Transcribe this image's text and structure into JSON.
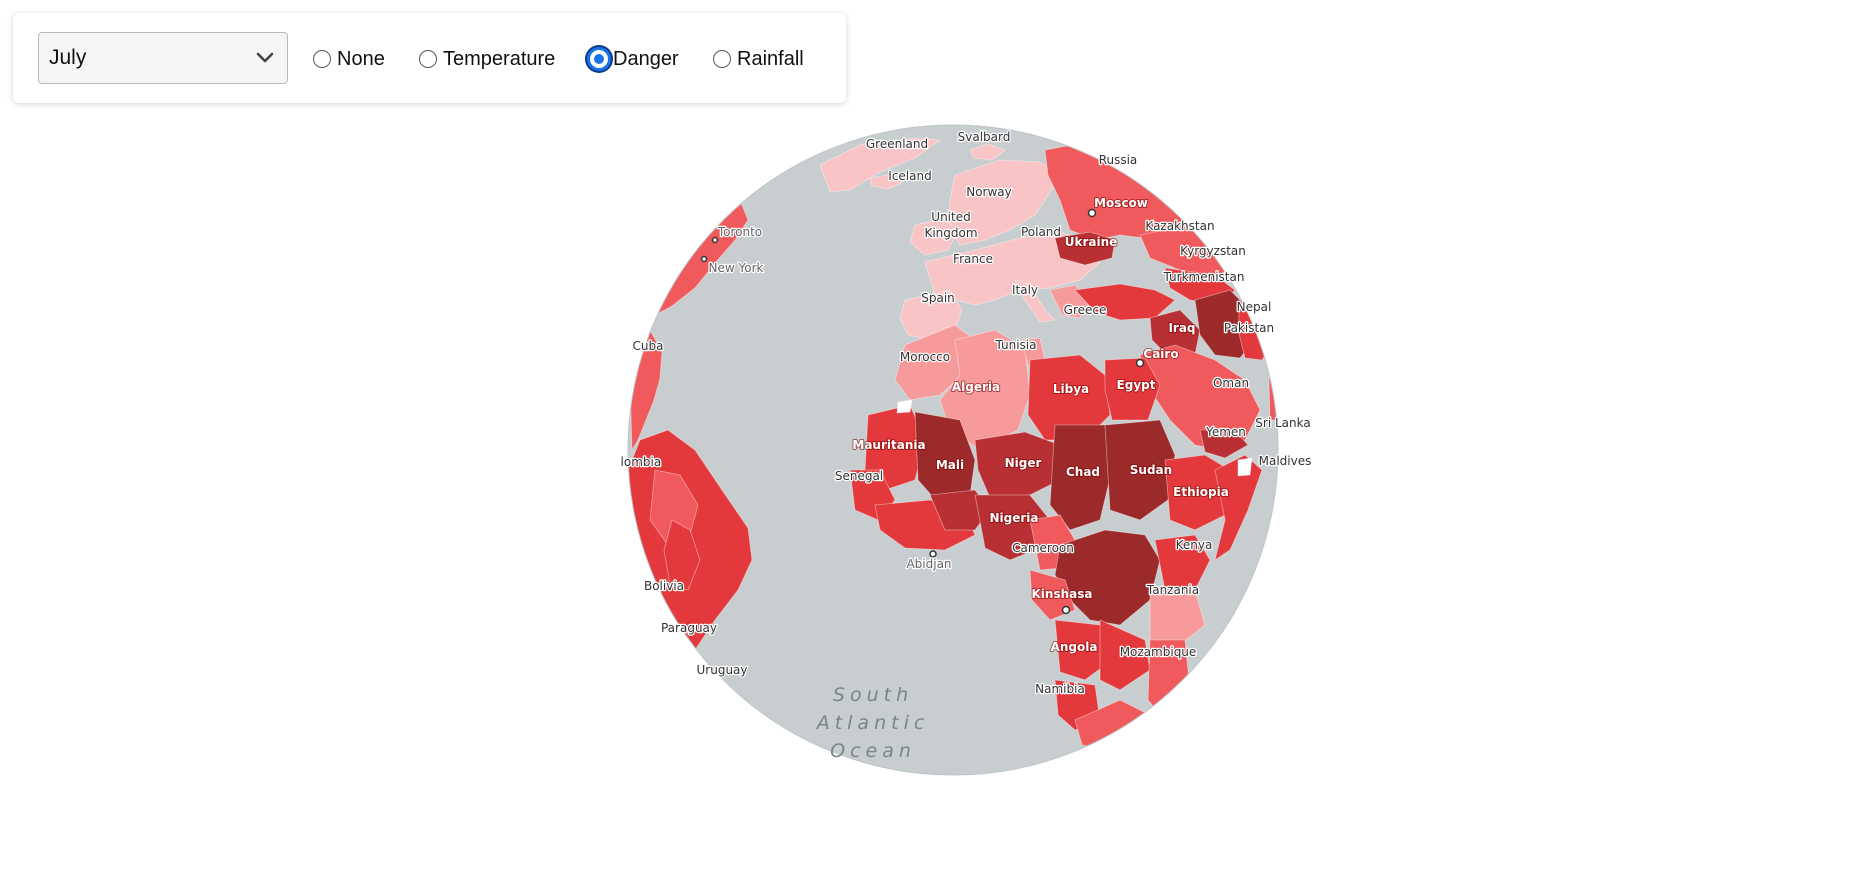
{
  "controls": {
    "month_select": {
      "value": "July"
    },
    "layers": [
      {
        "label": "None",
        "checked": false
      },
      {
        "label": "Temperature",
        "checked": false
      },
      {
        "label": "Danger",
        "checked": true
      },
      {
        "label": "Rainfall",
        "checked": false
      }
    ]
  },
  "map": {
    "ocean_label": [
      "South",
      "Atlantic",
      "Ocean"
    ],
    "colors": {
      "ocean": "#c8cdcf",
      "danger_low": "#f9c4c6",
      "danger_light": "#f79a9c",
      "danger_mid": "#f05a5c",
      "danger_high": "#e4393c",
      "danger_severe": "#b83033",
      "danger_extreme": "#9c2a2b",
      "unrated": "#ffffff"
    },
    "labels": {
      "greenland": "Greenland",
      "svalbard": "Svalbard",
      "russia": "Russia",
      "iceland": "Iceland",
      "norway": "Norway",
      "moscow": "Moscow",
      "toronto": "Toronto",
      "new_york": "New York",
      "united": "United",
      "kingdom": "Kingdom",
      "poland": "Poland",
      "kazakhstan": "Kazakhstan",
      "ukraine": "Ukraine",
      "kyrgyzstan": "Kyrgyzstan",
      "france": "France",
      "turkmenistan": "Turkmenistan",
      "italy": "Italy",
      "spain": "Spain",
      "nepal": "Nepal",
      "greece": "Greece",
      "iraq": "Iraq",
      "pakistan": "Pakistan",
      "cuba": "Cuba",
      "tunisia": "Tunisia",
      "cairo": "Cairo",
      "morocco": "Morocco",
      "algeria": "Algeria",
      "libya": "Libya",
      "egypt": "Egypt",
      "oman": "Oman",
      "sri_lanka": "Sri Lanka",
      "mauritania": "Mauritania",
      "yemen": "Yemen",
      "colombia": "Colombia",
      "maldives": "Maldives",
      "mali": "Mali",
      "niger": "Niger",
      "chad": "Chad",
      "sudan": "Sudan",
      "senegal": "Senegal",
      "ethiopia": "Ethiopia",
      "nigeria": "Nigeria",
      "cameroon": "Cameroon",
      "kenya": "Kenya",
      "abidjan": "Abidjan",
      "bolivia": "Bolivia",
      "kinshasa": "Kinshasa",
      "tanzania": "Tanzania",
      "paraguay": "Paraguay",
      "angola": "Angola",
      "mozambique": "Mozambique",
      "uruguay": "Uruguay",
      "namibia": "Namibia"
    }
  }
}
